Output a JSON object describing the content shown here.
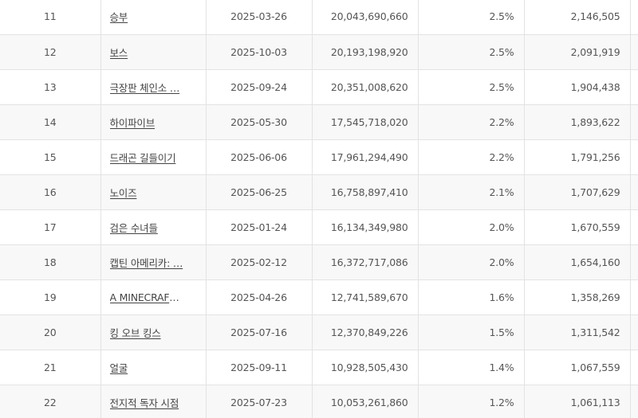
{
  "rows": [
    {
      "rank": "11",
      "title": "승부",
      "date": "2025-03-26",
      "sales": "20,043,690,660",
      "share": "2.5%",
      "audience": "2,146,505"
    },
    {
      "rank": "12",
      "title": "보스",
      "date": "2025-10-03",
      "sales": "20,193,198,920",
      "share": "2.5%",
      "audience": "2,091,919"
    },
    {
      "rank": "13",
      "title": "극장판 체인소 …",
      "date": "2025-09-24",
      "sales": "20,351,008,620",
      "share": "2.5%",
      "audience": "1,904,438"
    },
    {
      "rank": "14",
      "title": "하이파이브",
      "date": "2025-05-30",
      "sales": "17,545,718,020",
      "share": "2.2%",
      "audience": "1,893,622"
    },
    {
      "rank": "15",
      "title": "드래곤 길들이기",
      "date": "2025-06-06",
      "sales": "17,961,294,490",
      "share": "2.2%",
      "audience": "1,791,256"
    },
    {
      "rank": "16",
      "title": "노이즈",
      "date": "2025-06-25",
      "sales": "16,758,897,410",
      "share": "2.1%",
      "audience": "1,707,629"
    },
    {
      "rank": "17",
      "title": "검은 수녀들",
      "date": "2025-01-24",
      "sales": "16,134,349,980",
      "share": "2.0%",
      "audience": "1,670,559"
    },
    {
      "rank": "18",
      "title": "캡틴 아메리카: …",
      "date": "2025-02-12",
      "sales": "16,372,717,086",
      "share": "2.0%",
      "audience": "1,654,160"
    },
    {
      "rank": "19",
      "title": "A MINECRAFT …",
      "date": "2025-04-26",
      "sales": "12,741,589,670",
      "share": "1.6%",
      "audience": "1,358,269"
    },
    {
      "rank": "20",
      "title": "킹 오브 킹스",
      "date": "2025-07-16",
      "sales": "12,370,849,226",
      "share": "1.5%",
      "audience": "1,311,542"
    },
    {
      "rank": "21",
      "title": "얼굴",
      "date": "2025-09-11",
      "sales": "10,928,505,430",
      "share": "1.4%",
      "audience": "1,067,559"
    },
    {
      "rank": "22",
      "title": "전지적 독자 시점",
      "date": "2025-07-23",
      "sales": "10,053,261,860",
      "share": "1.2%",
      "audience": "1,061,113"
    }
  ]
}
